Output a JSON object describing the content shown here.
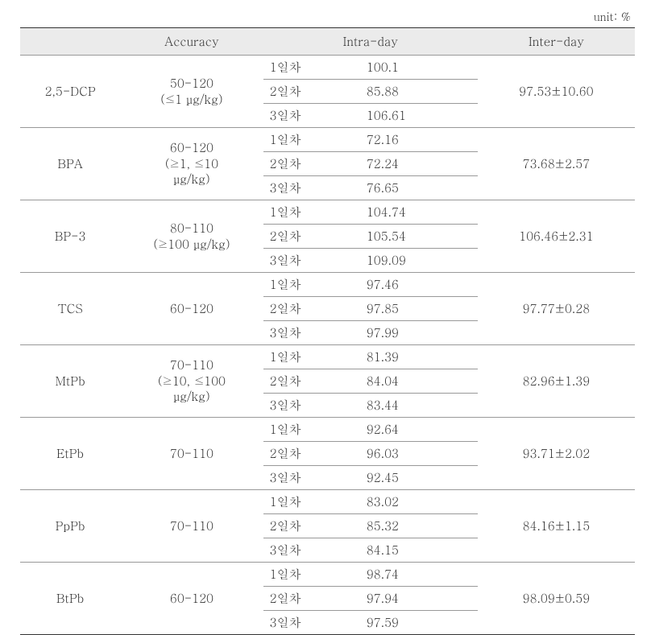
{
  "unit_label": "unit: %",
  "headers": {
    "blank": "",
    "accuracy": "Accuracy",
    "intraday": "Intra-day",
    "interday": "Inter-day"
  },
  "column_widths": {
    "blank": "14%",
    "compound": "14%",
    "accuracy": "20%",
    "day": "14%",
    "value": "16%",
    "inter": "22%"
  },
  "colors": {
    "header_bg": "#ebebeb",
    "border_main": "#333333",
    "border_sub": "#999999",
    "text": "#333333",
    "bg": "#ffffff"
  },
  "fontsize": 15,
  "rows": [
    {
      "compound": "2,5-DCP",
      "accuracy": "50-120\n(≤1 μg/kg)",
      "day1": "1일차",
      "val1": "100.1",
      "day2": "2일차",
      "val2": "85.88",
      "day3": "3일차",
      "val3": "106.61",
      "inter": "97.53±10.60"
    },
    {
      "compound": "BPA",
      "accuracy": "60-120\n(≥1, ≤10\nμg/kg)",
      "day1": "1일차",
      "val1": "72.16",
      "day2": "2일차",
      "val2": "72.24",
      "day3": "3일차",
      "val3": "76.65",
      "inter": "73.68±2.57"
    },
    {
      "compound": "BP-3",
      "accuracy": "80-110\n(≥100 μg/kg)",
      "day1": "1일차",
      "val1": "104.74",
      "day2": "2일차",
      "val2": "105.54",
      "day3": "3일차",
      "val3": "109.09",
      "inter": "106.46±2.31"
    },
    {
      "compound": "TCS",
      "accuracy": "60-120",
      "day1": "1일차",
      "val1": "97.46",
      "day2": "2일차",
      "val2": "97.85",
      "day3": "3일차",
      "val3": "97.99",
      "inter": "97.77±0.28"
    },
    {
      "compound": "MtPb",
      "accuracy": "70-110\n(≥10, ≤100\nμg/kg)",
      "day1": "1일차",
      "val1": "81.39",
      "day2": "2일차",
      "val2": "84.04",
      "day3": "3일차",
      "val3": "83.44",
      "inter": "82.96±1.39"
    },
    {
      "compound": "EtPb",
      "accuracy": "70-110",
      "day1": "1일차",
      "val1": "92.64",
      "day2": "2일차",
      "val2": "96.03",
      "day3": "3일차",
      "val3": "92.45",
      "inter": "93.71±2.02"
    },
    {
      "compound": "PpPb",
      "accuracy": "70-110",
      "day1": "1일차",
      "val1": "83.02",
      "day2": "2일차",
      "val2": "85.32",
      "day3": "3일차",
      "val3": "84.15",
      "inter": "84.16±1.15"
    },
    {
      "compound": "BtPb",
      "accuracy": "60-120",
      "day1": "1일차",
      "val1": "98.74",
      "day2": "2일차",
      "val2": "97.94",
      "day3": "3일차",
      "val3": "97.59",
      "inter": "98.09±0.59"
    }
  ]
}
